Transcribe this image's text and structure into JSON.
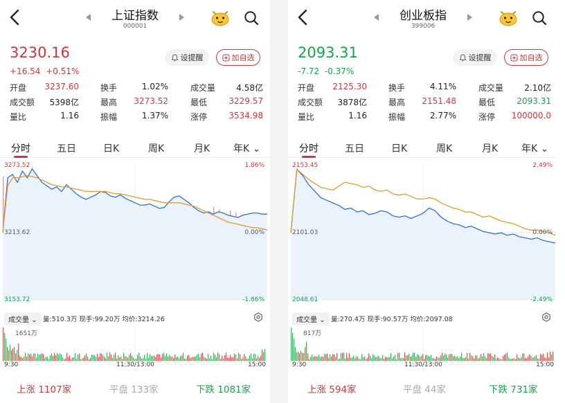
{
  "colors": {
    "up": "#d0363a",
    "down": "#17a34a",
    "flat": "#aaaaaa",
    "price_line": "#2f6fd0",
    "avg_line": "#e39a2b"
  },
  "panels": [
    {
      "name": "上证指数",
      "code": "000001",
      "price": "3230.16",
      "change": "+16.54",
      "change_pct": "+0.51%",
      "direction": "up",
      "alert_label": "设提醒",
      "add_label": "加自选",
      "stats": [
        [
          {
            "label": "开盘",
            "value": "3237.60",
            "color": "up"
          },
          {
            "label": "换手",
            "value": "1.02%",
            "color": "neutral"
          },
          {
            "label": "成交量",
            "value": "4.58亿",
            "color": "neutral"
          }
        ],
        [
          {
            "label": "成交额",
            "value": "5398亿",
            "color": "neutral"
          },
          {
            "label": "最高",
            "value": "3273.52",
            "color": "up"
          },
          {
            "label": "最低",
            "value": "3229.57",
            "color": "up"
          }
        ],
        [
          {
            "label": "量比",
            "value": "1.16",
            "color": "neutral"
          },
          {
            "label": "振幅",
            "value": "1.37%",
            "color": "neutral"
          },
          {
            "label": "涨停",
            "value": "3534.98",
            "color": "up"
          }
        ]
      ],
      "tabs": [
        "分时",
        "五日",
        "日K",
        "周K",
        "月K",
        "年K"
      ],
      "active_tab": 0,
      "chart": {
        "high_label": "3273.52",
        "mid_label": "3213.62",
        "low_label": "3153.72",
        "high_pct": "1.86%",
        "mid_pct": "0.00%",
        "low_pct": "-1.86%",
        "price_series": [
          3213.6,
          3262,
          3265,
          3258,
          3268,
          3262,
          3270,
          3264,
          3258,
          3255,
          3252,
          3254,
          3250,
          3256,
          3252,
          3248,
          3245,
          3243,
          3245,
          3247,
          3250,
          3249,
          3246,
          3245,
          3247,
          3244,
          3242,
          3240,
          3238,
          3238,
          3239,
          3237,
          3235,
          3236,
          3241,
          3245,
          3246,
          3243,
          3240,
          3236,
          3233,
          3231,
          3232,
          3230,
          3232,
          3231,
          3229,
          3228,
          3227,
          3229,
          3230,
          3231,
          3231,
          3230,
          3230
        ],
        "avg_series": [
          3213.6,
          3255,
          3262,
          3262,
          3263,
          3264,
          3263,
          3262,
          3260,
          3258,
          3256,
          3255,
          3254,
          3254,
          3253,
          3252,
          3251,
          3250,
          3250,
          3250,
          3250,
          3250,
          3249,
          3248,
          3248,
          3247,
          3246,
          3245,
          3244,
          3243,
          3243,
          3242,
          3241,
          3240,
          3240,
          3240,
          3240,
          3239,
          3238,
          3237,
          3235,
          3233,
          3231,
          3229,
          3227,
          3225,
          3223,
          3222,
          3221,
          3220,
          3219,
          3218,
          3218,
          3217,
          3216
        ],
        "vol_label": "成交量",
        "vol_info": "量:510.3万  现手:99.20万  均价:3214.26",
        "vol_max_label": "1651万",
        "time_start": "9:30",
        "time_mid": "11:30/13:00",
        "time_end": "15:00"
      },
      "breadth": {
        "up_label": "上涨",
        "up_count": "1107家",
        "flat_label": "平盘",
        "flat_count": "133家",
        "down_label": "下跌",
        "down_count": "1081家"
      }
    },
    {
      "name": "创业板指",
      "code": "399006",
      "price": "2093.31",
      "change": "-7.72",
      "change_pct": "-0.37%",
      "direction": "down",
      "alert_label": "设提醒",
      "add_label": "加自选",
      "stats": [
        [
          {
            "label": "开盘",
            "value": "2125.30",
            "color": "up"
          },
          {
            "label": "换手",
            "value": "4.11%",
            "color": "neutral"
          },
          {
            "label": "成交量",
            "value": "2.10亿",
            "color": "neutral"
          }
        ],
        [
          {
            "label": "成交额",
            "value": "3878亿",
            "color": "neutral"
          },
          {
            "label": "最高",
            "value": "2151.48",
            "color": "up"
          },
          {
            "label": "最低",
            "value": "2093.31",
            "color": "down"
          }
        ],
        [
          {
            "label": "量比",
            "value": "1.16",
            "color": "neutral"
          },
          {
            "label": "振幅",
            "value": "2.77%",
            "color": "neutral"
          },
          {
            "label": "涨停",
            "value": "100000.0",
            "color": "up"
          }
        ]
      ],
      "tabs": [
        "分时",
        "五日",
        "日K",
        "周K",
        "月K",
        "年K"
      ],
      "active_tab": 0,
      "chart": {
        "high_label": "2153.45",
        "mid_label": "2101.03",
        "low_label": "2048.61",
        "high_pct": "2.49%",
        "mid_pct": "0.00%",
        "low_pct": "-2.49%",
        "price_series": [
          2101,
          2150,
          2145,
          2138,
          2133,
          2128,
          2126,
          2124,
          2122,
          2119,
          2120,
          2117,
          2118,
          2115,
          2116,
          2118,
          2117,
          2114,
          2113,
          2114,
          2112,
          2114,
          2116,
          2120,
          2118,
          2113,
          2110,
          2108,
          2107,
          2105,
          2106,
          2104,
          2102,
          2101,
          2100,
          2101,
          2099,
          2100,
          2098,
          2097,
          2096,
          2097,
          2095,
          2094,
          2093
        ],
        "avg_series": [
          2101,
          2150,
          2146,
          2142,
          2139,
          2136,
          2135,
          2134,
          2137,
          2140,
          2139,
          2138,
          2136,
          2137,
          2134,
          2133,
          2134,
          2131,
          2130,
          2131,
          2129,
          2127,
          2127,
          2128,
          2127,
          2124,
          2122,
          2120,
          2119,
          2117,
          2117,
          2115,
          2113,
          2114,
          2112,
          2110,
          2109,
          2108,
          2106,
          2104,
          2103,
          2103,
          2102,
          2101,
          2099
        ],
        "vol_label": "成交量",
        "vol_info": "量:270.4万  现手:90.57万  均价:2097.08",
        "vol_max_label": "817万",
        "time_start": "9:30",
        "time_mid": "11:30/13:00",
        "time_end": "15:00"
      },
      "breadth": {
        "up_label": "上涨",
        "up_count": "594家",
        "flat_label": "平盘",
        "flat_count": "44家",
        "down_label": "下跌",
        "down_count": "731家"
      }
    }
  ]
}
